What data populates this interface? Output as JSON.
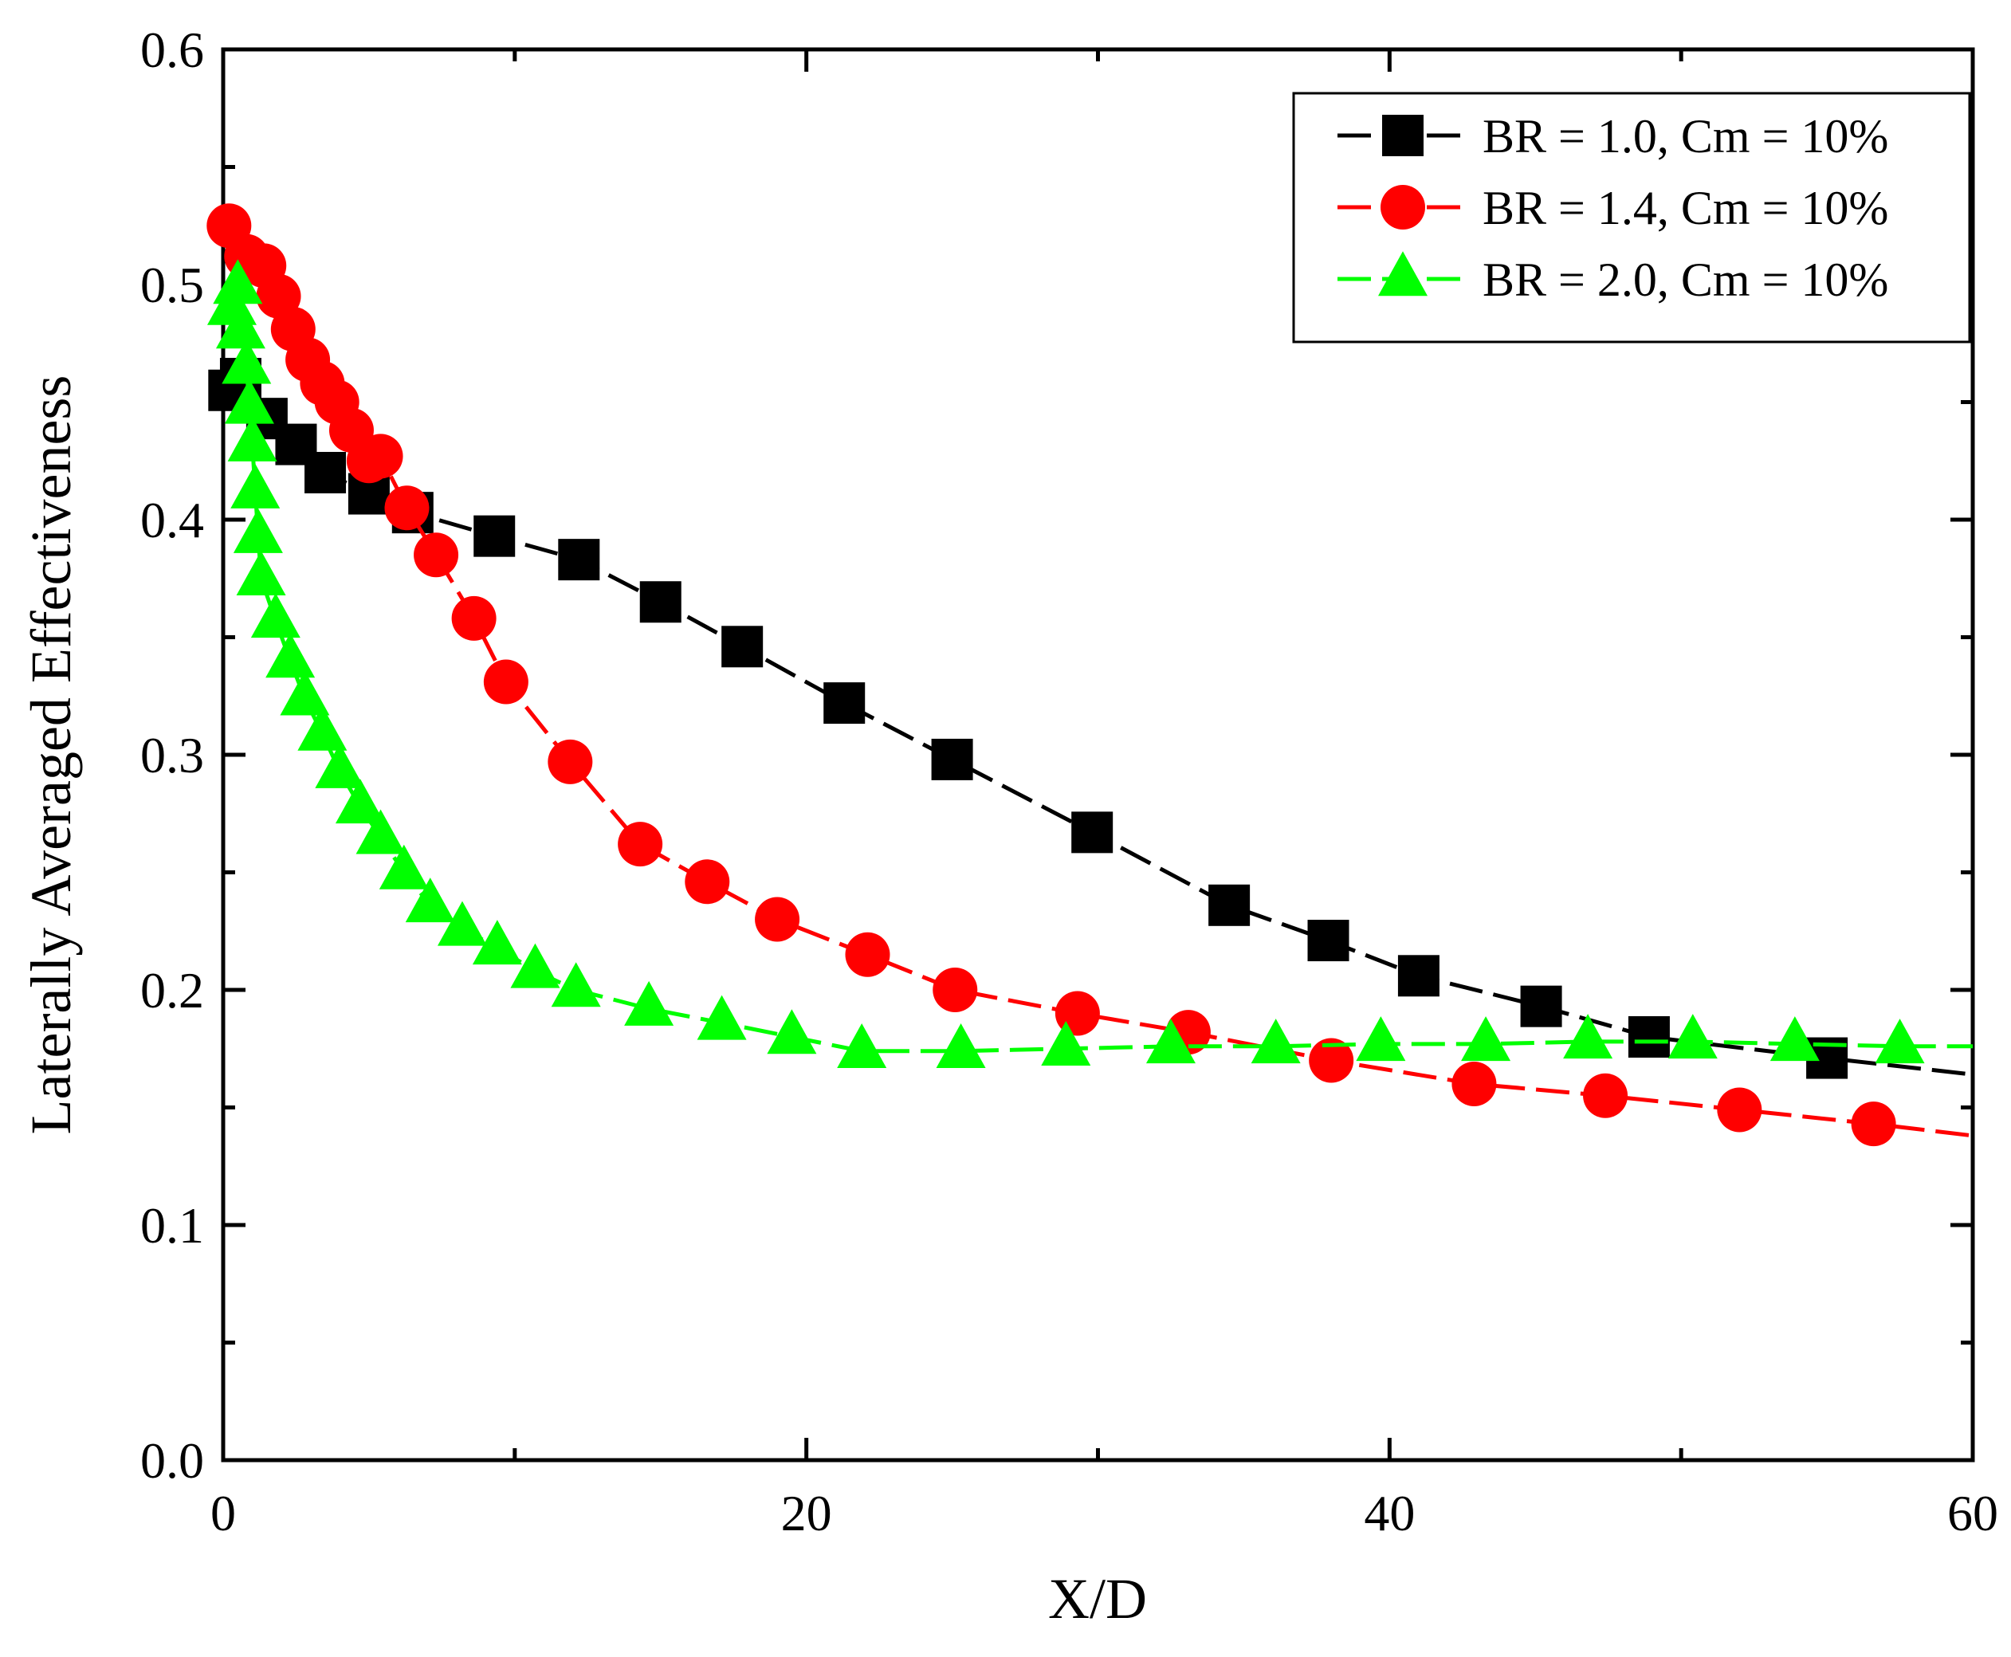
{
  "chart_data": {
    "type": "line",
    "title": "",
    "xlabel": "X/D",
    "ylabel": "Laterally Averaged Effectiveness",
    "xlim": [
      0,
      60
    ],
    "ylim": [
      0.0,
      0.6
    ],
    "xticks": [
      0,
      20,
      40,
      60
    ],
    "yticks": [
      0.0,
      0.1,
      0.2,
      0.3,
      0.4,
      0.5,
      0.6
    ],
    "xtick_labels": [
      "0",
      "20",
      "40",
      "60"
    ],
    "ytick_labels": [
      "0.0",
      "0.1",
      "0.2",
      "0.3",
      "0.4",
      "0.5",
      "0.6"
    ],
    "grid": false,
    "legend_position": "top-right",
    "series": [
      {
        "name": "BR = 1.0, Cm = 10%",
        "color": "#000000",
        "marker": "square",
        "x": [
          0.2,
          0.6,
          1.5,
          2.5,
          3.5,
          5.0,
          6.5,
          9.3,
          12.2,
          15.0,
          17.8,
          21.3,
          25.0,
          29.8,
          34.5,
          37.9,
          41.0,
          45.2,
          48.9,
          55.0,
          60.0
        ],
        "y": [
          0.455,
          0.46,
          0.443,
          0.432,
          0.42,
          0.411,
          0.403,
          0.393,
          0.383,
          0.365,
          0.346,
          0.322,
          0.298,
          0.267,
          0.236,
          0.221,
          0.206,
          0.193,
          0.18,
          0.171,
          0.164
        ]
      },
      {
        "name": "BR = 1.4, Cm = 10%",
        "color": "#ff0000",
        "marker": "circle",
        "x": [
          0.2,
          0.8,
          1.4,
          1.9,
          2.4,
          2.9,
          3.4,
          3.9,
          4.4,
          5.0,
          5.4,
          6.3,
          7.3,
          8.6,
          9.7,
          11.9,
          14.3,
          16.6,
          19.0,
          22.1,
          25.1,
          29.3,
          33.1,
          38.0,
          42.9,
          47.4,
          52.0,
          56.6,
          60.0
        ],
        "y": [
          0.525,
          0.512,
          0.508,
          0.495,
          0.481,
          0.468,
          0.458,
          0.45,
          0.438,
          0.425,
          0.427,
          0.405,
          0.385,
          0.358,
          0.331,
          0.297,
          0.262,
          0.246,
          0.23,
          0.215,
          0.2,
          0.19,
          0.182,
          0.17,
          0.16,
          0.155,
          0.149,
          0.143,
          0.138
        ]
      },
      {
        "name": "BR = 2.0, Cm = 10%",
        "color": "#00ff00",
        "marker": "triangle",
        "x": [
          0.3,
          0.5,
          0.6,
          0.8,
          0.9,
          1.0,
          1.1,
          1.2,
          1.3,
          1.8,
          2.3,
          2.8,
          3.4,
          4.0,
          4.7,
          5.4,
          6.2,
          7.1,
          8.2,
          9.4,
          10.7,
          12.1,
          14.6,
          17.1,
          19.5,
          21.9,
          25.3,
          28.9,
          32.5,
          36.1,
          39.7,
          43.3,
          46.8,
          50.4,
          53.9,
          57.5,
          60.0
        ],
        "y": [
          0.49,
          0.499,
          0.48,
          0.465,
          0.448,
          0.432,
          0.412,
          0.393,
          0.375,
          0.357,
          0.34,
          0.324,
          0.309,
          0.293,
          0.278,
          0.265,
          0.25,
          0.236,
          0.226,
          0.218,
          0.208,
          0.2,
          0.192,
          0.186,
          0.18,
          0.174,
          0.174,
          0.175,
          0.176,
          0.176,
          0.177,
          0.177,
          0.178,
          0.178,
          0.177,
          0.176,
          0.176
        ]
      }
    ]
  }
}
